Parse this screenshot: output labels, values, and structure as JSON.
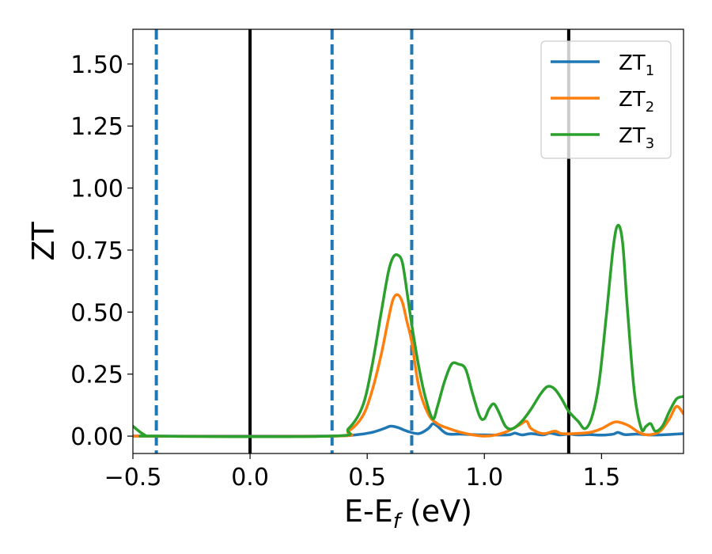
{
  "chart_data": {
    "type": "line",
    "xlabel": "E-E",
    "xlabel_sub": "f",
    "xlabel_unit": " (eV)",
    "ylabel": "ZT",
    "xlim": [
      -0.5,
      1.85
    ],
    "ylim": [
      -0.07,
      1.64
    ],
    "xticks": [
      -0.5,
      0.0,
      0.5,
      1.0,
      1.5
    ],
    "xtick_labels": [
      "−0.5",
      "0.0",
      "0.5",
      "1.0",
      "1.5"
    ],
    "yticks": [
      0.0,
      0.25,
      0.5,
      0.75,
      1.0,
      1.25,
      1.5
    ],
    "ytick_labels": [
      "0.00",
      "0.25",
      "0.50",
      "0.75",
      "1.00",
      "1.25",
      "1.50"
    ],
    "grid": false,
    "legend_position": "top-right",
    "vlines": [
      {
        "x": -0.4,
        "style": "dashed",
        "color": "#1f77b4"
      },
      {
        "x": 0.0,
        "style": "solid",
        "color": "#000000"
      },
      {
        "x": 0.35,
        "style": "dashed",
        "color": "#1f77b4"
      },
      {
        "x": 0.69,
        "style": "dashed",
        "color": "#1f77b4"
      },
      {
        "x": 1.36,
        "style": "solid",
        "color": "#000000"
      }
    ],
    "series": [
      {
        "name": "ZT",
        "name_sub": "1",
        "color": "#1f77b4",
        "x": [
          -0.5,
          0.3,
          0.45,
          0.52,
          0.57,
          0.6,
          0.63,
          0.67,
          0.72,
          0.76,
          0.78,
          0.8,
          0.84,
          0.9,
          1.0,
          1.1,
          1.13,
          1.16,
          1.2,
          1.25,
          1.28,
          1.32,
          1.36,
          1.4,
          1.45,
          1.5,
          1.55,
          1.57,
          1.6,
          1.65,
          1.7,
          1.75,
          1.85
        ],
        "y": [
          0.0,
          0.0,
          0.005,
          0.015,
          0.03,
          0.04,
          0.035,
          0.02,
          0.01,
          0.03,
          0.05,
          0.04,
          0.01,
          0.008,
          0.005,
          0.005,
          0.012,
          0.005,
          0.01,
          0.005,
          0.012,
          0.005,
          0.008,
          0.005,
          0.006,
          0.004,
          0.008,
          0.015,
          0.006,
          0.008,
          0.005,
          0.005,
          0.01
        ]
      },
      {
        "name": "ZT",
        "name_sub": "2",
        "color": "#ff7f0e",
        "x": [
          -0.5,
          0.35,
          0.42,
          0.48,
          0.52,
          0.56,
          0.59,
          0.61,
          0.63,
          0.65,
          0.67,
          0.69,
          0.72,
          0.76,
          0.8,
          0.85,
          0.9,
          0.95,
          1.0,
          1.05,
          1.1,
          1.15,
          1.18,
          1.2,
          1.25,
          1.3,
          1.33,
          1.38,
          1.45,
          1.5,
          1.55,
          1.58,
          1.62,
          1.66,
          1.7,
          1.75,
          1.79,
          1.82,
          1.85
        ],
        "y": [
          0.0,
          0.0,
          0.02,
          0.08,
          0.18,
          0.33,
          0.47,
          0.55,
          0.57,
          0.54,
          0.46,
          0.38,
          0.2,
          0.09,
          0.05,
          0.03,
          0.015,
          0.005,
          0.0,
          0.005,
          0.02,
          0.045,
          0.06,
          0.03,
          0.01,
          0.02,
          0.01,
          0.01,
          0.015,
          0.03,
          0.055,
          0.055,
          0.04,
          0.015,
          0.005,
          0.02,
          0.07,
          0.12,
          0.09
        ]
      },
      {
        "name": "ZT",
        "name_sub": "3",
        "color": "#2ca02c",
        "x": [
          -0.5,
          -0.45,
          -0.4,
          0.35,
          0.42,
          0.48,
          0.52,
          0.56,
          0.59,
          0.61,
          0.63,
          0.65,
          0.67,
          0.69,
          0.72,
          0.75,
          0.78,
          0.8,
          0.83,
          0.86,
          0.89,
          0.92,
          0.95,
          0.98,
          1.0,
          1.02,
          1.04,
          1.06,
          1.09,
          1.12,
          1.16,
          1.2,
          1.24,
          1.27,
          1.3,
          1.33,
          1.36,
          1.4,
          1.43,
          1.46,
          1.49,
          1.52,
          1.55,
          1.57,
          1.59,
          1.61,
          1.64,
          1.67,
          1.69,
          1.71,
          1.73,
          1.76,
          1.79,
          1.82,
          1.85
        ],
        "y": [
          0.04,
          0.005,
          0.0,
          0.0,
          0.03,
          0.12,
          0.28,
          0.5,
          0.66,
          0.72,
          0.73,
          0.7,
          0.58,
          0.45,
          0.28,
          0.15,
          0.07,
          0.12,
          0.22,
          0.29,
          0.29,
          0.27,
          0.17,
          0.08,
          0.07,
          0.11,
          0.13,
          0.1,
          0.04,
          0.03,
          0.06,
          0.11,
          0.17,
          0.2,
          0.19,
          0.15,
          0.1,
          0.06,
          0.03,
          0.08,
          0.22,
          0.48,
          0.76,
          0.85,
          0.78,
          0.52,
          0.18,
          0.03,
          0.04,
          0.05,
          0.02,
          0.04,
          0.1,
          0.15,
          0.16
        ]
      }
    ]
  }
}
